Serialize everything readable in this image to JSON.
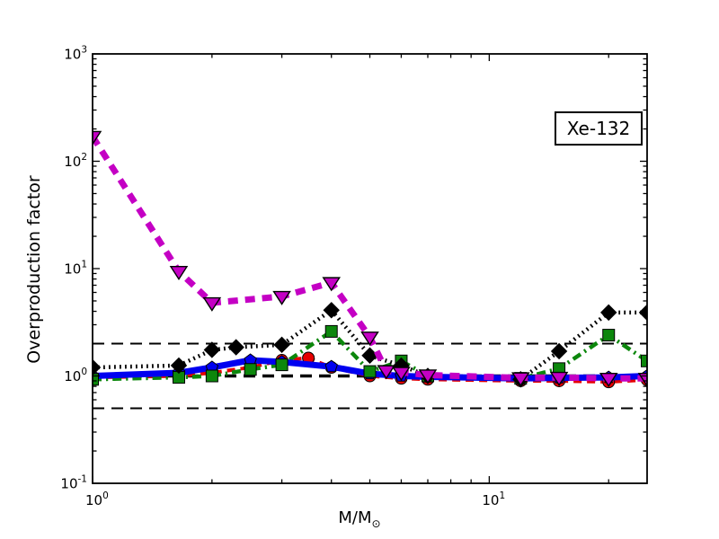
{
  "figure": {
    "background": "#ffffff"
  },
  "chart_data": {
    "type": "line",
    "title": "",
    "xlabel": "M/M⊙",
    "xlabel_main": "M/M",
    "xlabel_sub": "⊙",
    "ylabel": "Overproduction factor",
    "xscale": "log",
    "yscale": "log",
    "xlim": [
      1,
      25
    ],
    "ylim": [
      0.1,
      1000
    ],
    "grid": false,
    "legend": "none",
    "annotation": {
      "text": "Xe-132"
    },
    "x_ticks": [
      {
        "value": 1,
        "base": "10",
        "exp": "0"
      },
      {
        "value": 10,
        "base": "10",
        "exp": "1"
      }
    ],
    "y_ticks": [
      {
        "value": 1000,
        "base": "10",
        "exp": "3"
      },
      {
        "value": 100,
        "base": "10",
        "exp": "2"
      },
      {
        "value": 10,
        "base": "10",
        "exp": "1"
      },
      {
        "value": 1,
        "base": "10",
        "exp": "0"
      },
      {
        "value": 0.1,
        "base": "10",
        "exp": "-1"
      }
    ],
    "x_minor_ticks": [
      2,
      3,
      4,
      5,
      6,
      7,
      8,
      9,
      20
    ],
    "reference_lines": [
      {
        "y": 2.0,
        "color": "#000000",
        "style": "dashed",
        "width": 2
      },
      {
        "y": 1.0,
        "color": "#000000",
        "style": "dashed",
        "width": 3.6
      },
      {
        "y": 0.5,
        "color": "#000000",
        "style": "dashed",
        "width": 2
      }
    ],
    "series": [
      {
        "name": "red-dashed-circles",
        "color": "#e60000",
        "linestyle": "dashed",
        "linewidth": 4,
        "marker": "circle",
        "x": [
          1,
          1.65,
          2,
          2.5,
          3,
          3.5,
          4,
          5,
          6,
          7,
          12,
          15,
          20,
          25
        ],
        "y": [
          0.97,
          1.0,
          1.07,
          1.2,
          1.4,
          1.47,
          1.2,
          1.0,
          0.95,
          0.93,
          0.9,
          0.9,
          0.88,
          0.92
        ]
      },
      {
        "name": "green-dashdot-squares",
        "color": "#0c870c",
        "linestyle": "dashdot",
        "linewidth": 4.5,
        "marker": "square",
        "x": [
          1,
          1.65,
          2,
          2.5,
          3,
          4,
          5,
          6,
          7,
          12,
          15,
          20,
          25
        ],
        "y": [
          0.93,
          0.97,
          1.0,
          1.15,
          1.27,
          2.6,
          1.1,
          1.38,
          1.0,
          0.95,
          1.17,
          2.4,
          1.38
        ]
      },
      {
        "name": "black-dotted-diamonds",
        "color": "#000000",
        "linestyle": "dotted",
        "linewidth": 4.5,
        "marker": "diamond",
        "x": [
          1,
          1.65,
          2,
          2.3,
          3,
          4,
          5,
          6,
          7,
          12,
          15,
          20,
          25
        ],
        "y": [
          1.2,
          1.25,
          1.75,
          1.85,
          1.95,
          4.1,
          1.55,
          1.25,
          1.0,
          0.93,
          1.7,
          3.9,
          3.9
        ]
      },
      {
        "name": "blue-solid-pentagons",
        "color": "#0000f0",
        "linestyle": "solid",
        "linewidth": 7,
        "marker": "pentagon",
        "x": [
          1,
          1.65,
          2,
          2.5,
          3,
          4,
          5,
          6,
          7,
          12,
          15,
          20,
          25
        ],
        "y": [
          1.0,
          1.07,
          1.2,
          1.4,
          1.35,
          1.22,
          1.05,
          1.0,
          0.98,
          0.95,
          0.96,
          0.97,
          1.0
        ]
      },
      {
        "name": "magenta-dashed-triangles",
        "color": "#c400c4",
        "linestyle": "dashed-thick",
        "linewidth": 7,
        "marker": "triangle-down",
        "x": [
          1,
          1.65,
          2,
          3,
          4,
          5,
          5.5,
          6,
          7,
          12,
          15,
          20,
          25
        ],
        "y": [
          170,
          9.4,
          4.8,
          5.5,
          7.4,
          2.3,
          1.12,
          1.08,
          1.02,
          0.96,
          0.97,
          0.95,
          0.95
        ]
      }
    ]
  }
}
